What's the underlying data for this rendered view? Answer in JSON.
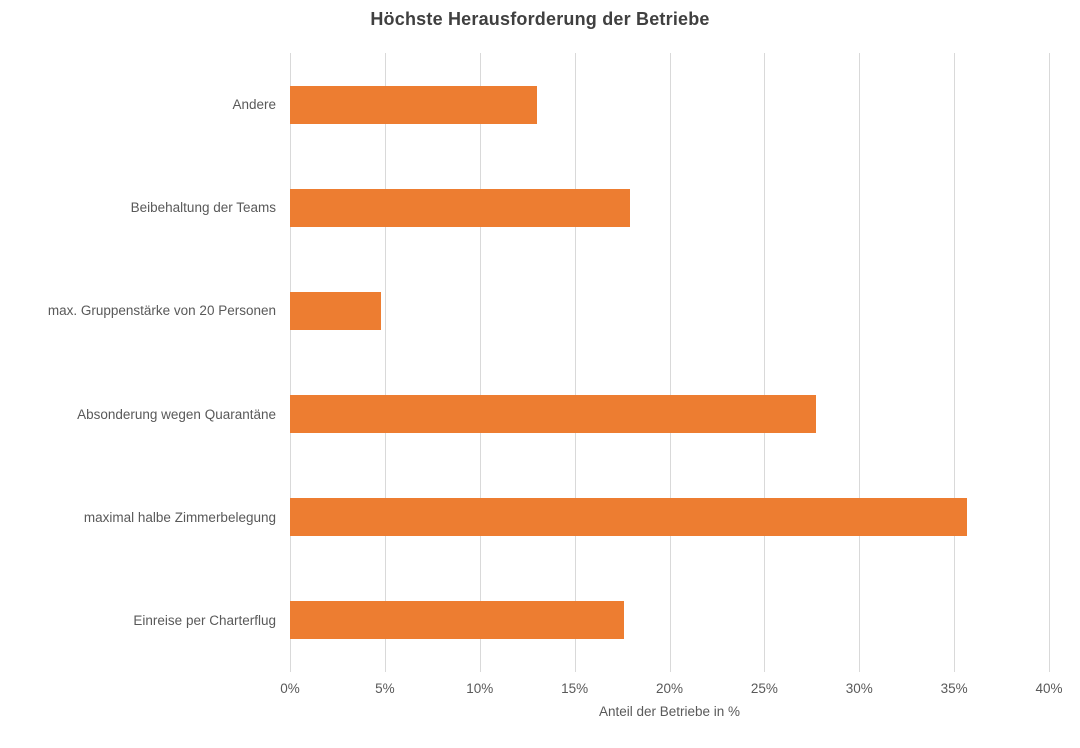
{
  "chart_data": {
    "type": "bar",
    "orientation": "horizontal",
    "title": "Höchste Herausforderung der Betriebe",
    "xlabel": "Anteil der Betriebe in %",
    "categories": [
      "Andere",
      "Beibehaltung der Teams",
      "max. Gruppenstärke von 20 Personen",
      "Absonderung wegen Quarantäne",
      "maximal halbe Zimmerbelegung",
      "Einreise per Charterflug"
    ],
    "values": [
      13.0,
      17.9,
      4.8,
      27.7,
      35.7,
      17.6
    ],
    "xlim": [
      0,
      40
    ],
    "xticks": [
      0,
      5,
      10,
      15,
      20,
      25,
      30,
      35,
      40
    ],
    "xtick_labels": [
      "0%",
      "5%",
      "10%",
      "15%",
      "20%",
      "25%",
      "30%",
      "35%",
      "40%"
    ],
    "bar_color": "#ed7d31",
    "gridline_color": "#d9d9d9",
    "text_color": "#595959",
    "title_color": "#404040",
    "background_color": "#ffffff",
    "grid": true,
    "legend": "none"
  }
}
